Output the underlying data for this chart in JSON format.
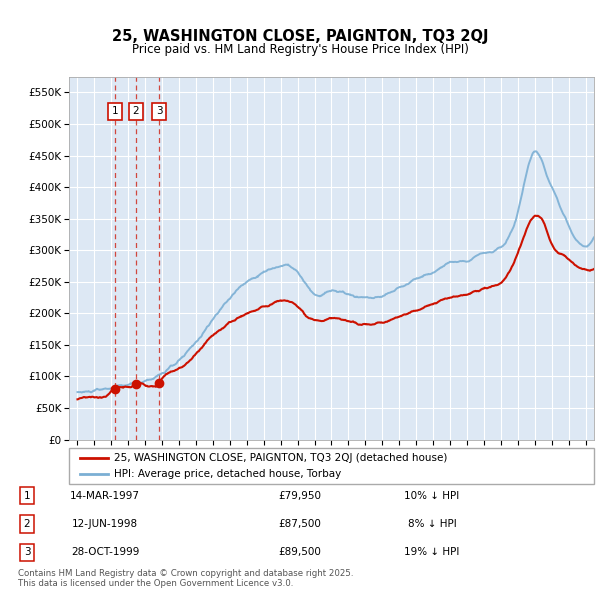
{
  "title": "25, WASHINGTON CLOSE, PAIGNTON, TQ3 2QJ",
  "subtitle": "Price paid vs. HM Land Registry's House Price Index (HPI)",
  "sales": [
    {
      "num": 1,
      "date": "14-MAR-1997",
      "date_x": 1997.2,
      "price": 79950,
      "pct": "10% ↓ HPI"
    },
    {
      "num": 2,
      "date": "12-JUN-1998",
      "date_x": 1998.45,
      "price": 87500,
      "pct": "8% ↓ HPI"
    },
    {
      "num": 3,
      "date": "28-OCT-1999",
      "date_x": 1999.83,
      "price": 89500,
      "pct": "19% ↓ HPI"
    }
  ],
  "legend_line1": "25, WASHINGTON CLOSE, PAIGNTON, TQ3 2QJ (detached house)",
  "legend_line2": "HPI: Average price, detached house, Torbay",
  "footer": "Contains HM Land Registry data © Crown copyright and database right 2025.\nThis data is licensed under the Open Government Licence v3.0.",
  "hpi_color": "#7bafd4",
  "sale_color": "#cc1100",
  "background_color": "#dde8f4",
  "ylim": [
    0,
    575000
  ],
  "xlim": [
    1994.5,
    2025.5
  ]
}
